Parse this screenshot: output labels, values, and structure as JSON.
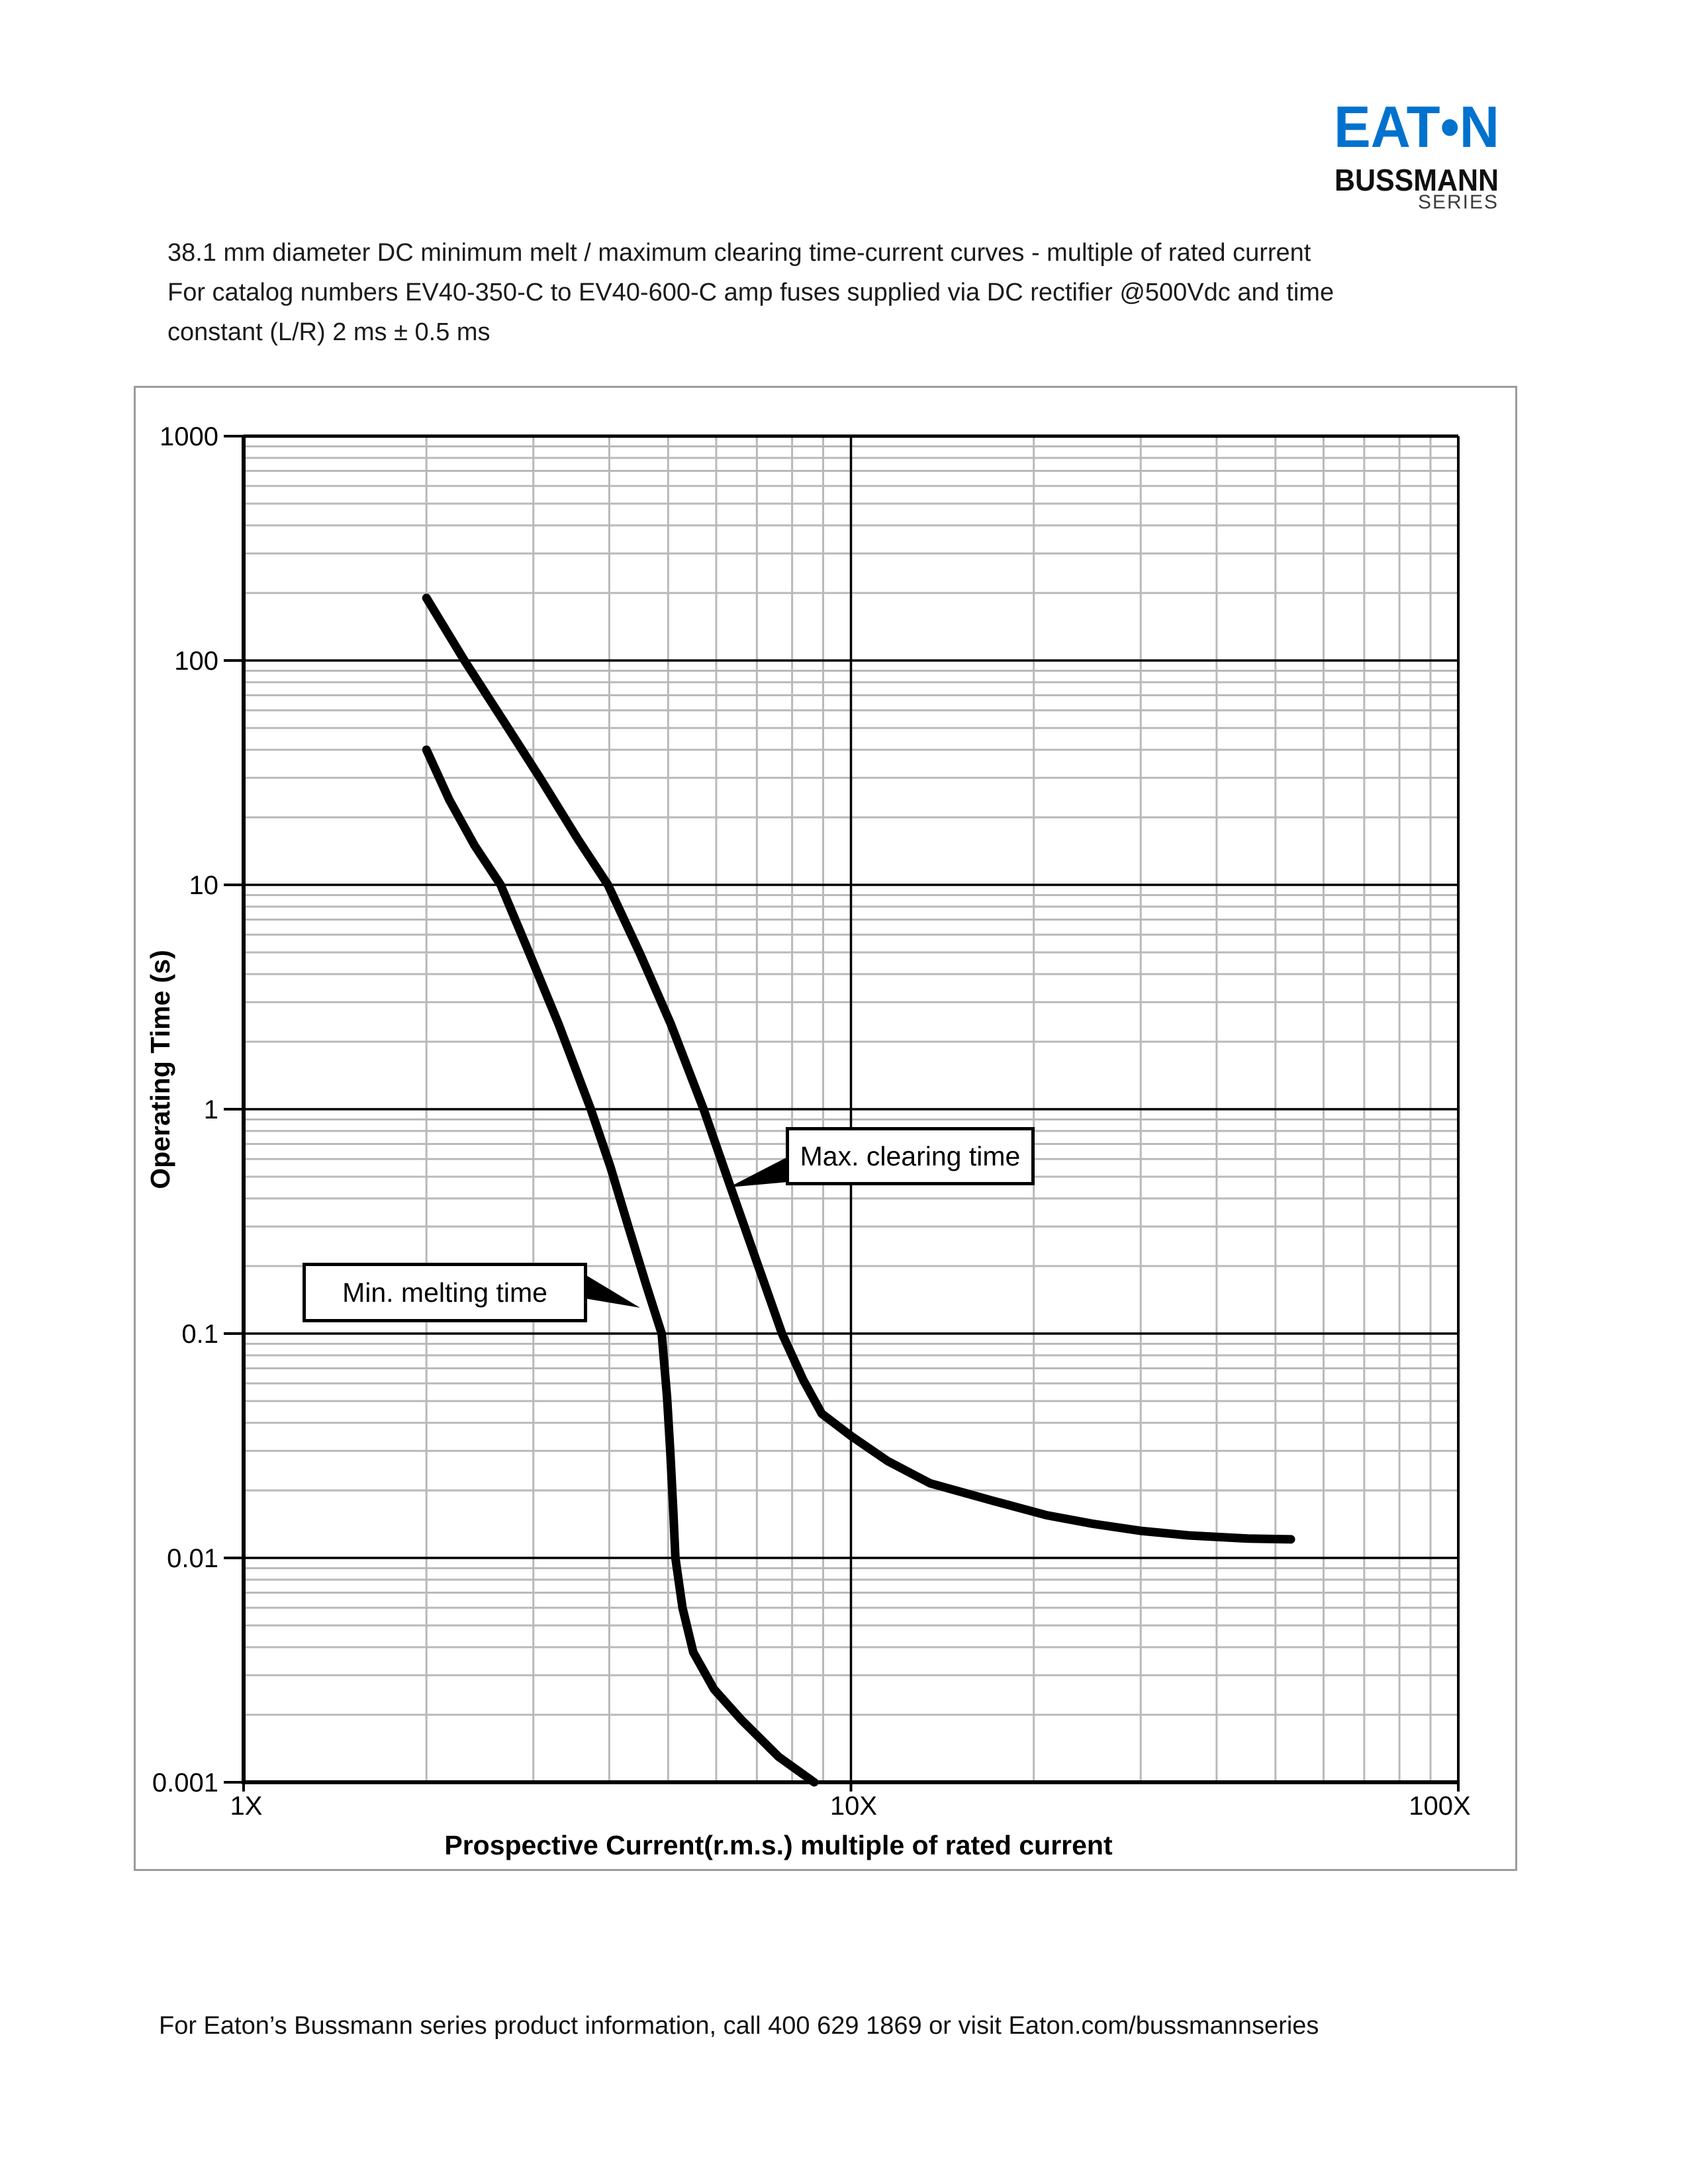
{
  "logo": {
    "eaton": "EAT•N",
    "bussmann": "BUSSMANN",
    "series": "SERIES",
    "eaton_blue": "#0072CE"
  },
  "title": {
    "line1": "38.1 mm diameter DC minimum melt / maximum clearing time-current curves - multiple of rated current",
    "line2": "For catalog numbers EV40-350-C to EV40-600-C amp fuses supplied via DC rectifier @500Vdc and time",
    "line3": "constant (L/R) 2 ms ± 0.5 ms"
  },
  "chart_data": {
    "type": "line",
    "title": "",
    "xlabel": "Prospective Current(r.m.s.) multiple of rated current",
    "ylabel": "Operating Time (s)",
    "x_scale": "log",
    "y_scale": "log",
    "xlim": [
      1,
      100
    ],
    "ylim": [
      0.001,
      1000
    ],
    "x_ticks": [
      {
        "v": 1,
        "label": "1X"
      },
      {
        "v": 10,
        "label": "10X"
      },
      {
        "v": 100,
        "label": "100X"
      }
    ],
    "y_ticks": [
      {
        "v": 1000,
        "label": "1000"
      },
      {
        "v": 100,
        "label": "100"
      },
      {
        "v": 10,
        "label": "10"
      },
      {
        "v": 1,
        "label": "1"
      },
      {
        "v": 0.1,
        "label": "0.1"
      },
      {
        "v": 0.01,
        "label": "0.01"
      },
      {
        "v": 0.001,
        "label": "0.001"
      }
    ],
    "grid": {
      "minor_color": "#b9b9b9",
      "major_color": "#000000",
      "minor_on": true,
      "major_on": true
    },
    "legend": "none (labels via callout boxes)",
    "series": [
      {
        "name": "Min. melting time",
        "points": [
          [
            2.0,
            40
          ],
          [
            2.18,
            24
          ],
          [
            2.4,
            15
          ],
          [
            2.65,
            10
          ],
          [
            2.95,
            5.0
          ],
          [
            3.3,
            2.4
          ],
          [
            3.73,
            1.0
          ],
          [
            4.02,
            0.55
          ],
          [
            4.3,
            0.3
          ],
          [
            4.6,
            0.165
          ],
          [
            4.88,
            0.1
          ],
          [
            4.98,
            0.052
          ],
          [
            5.04,
            0.03
          ],
          [
            5.1,
            0.016
          ],
          [
            5.14,
            0.01
          ],
          [
            5.28,
            0.006
          ],
          [
            5.5,
            0.0038
          ],
          [
            5.95,
            0.0026
          ],
          [
            6.6,
            0.0019
          ],
          [
            7.6,
            0.0013
          ],
          [
            8.7,
            0.001
          ]
        ]
      },
      {
        "name": "Max. clearing time",
        "points": [
          [
            2.0,
            190
          ],
          [
            2.31,
            100
          ],
          [
            2.7,
            52
          ],
          [
            3.1,
            29
          ],
          [
            3.55,
            16
          ],
          [
            3.98,
            10
          ],
          [
            4.5,
            4.9
          ],
          [
            5.05,
            2.4
          ],
          [
            5.72,
            1.0
          ],
          [
            6.3,
            0.47
          ],
          [
            6.95,
            0.22
          ],
          [
            7.7,
            0.1
          ],
          [
            8.35,
            0.062
          ],
          [
            8.95,
            0.044
          ],
          [
            10.0,
            0.035
          ],
          [
            11.5,
            0.027
          ],
          [
            13.5,
            0.0215
          ],
          [
            17.1,
            0.018
          ],
          [
            21.0,
            0.0155
          ],
          [
            25.0,
            0.0142
          ],
          [
            30.0,
            0.0132
          ],
          [
            36.0,
            0.0126
          ],
          [
            45.0,
            0.0122
          ],
          [
            53.0,
            0.0121
          ]
        ]
      }
    ],
    "annotations": [
      {
        "label": "Min. melting time",
        "points_to": [
          4.5,
          0.13
        ]
      },
      {
        "label": "Max. clearing time",
        "points_to": [
          6.3,
          0.45
        ]
      }
    ]
  },
  "footer": {
    "text": "For Eaton’s Bussmann series product information, call 400 629 1869 or visit Eaton.com/bussmannseries"
  }
}
